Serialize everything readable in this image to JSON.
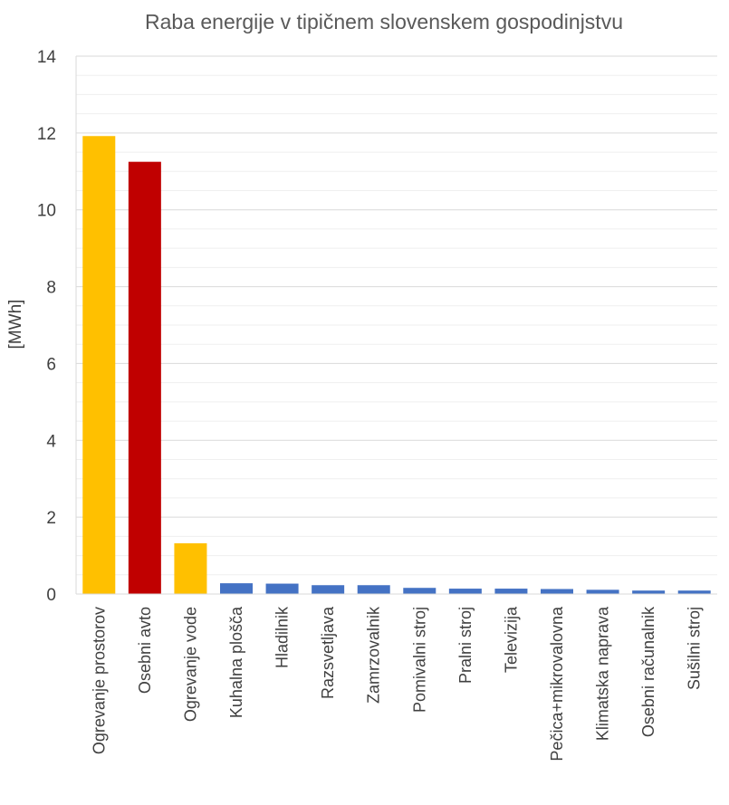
{
  "chart_data": {
    "type": "bar",
    "title": "Raba energije v tipičnem slovenskem gospodinjstvu",
    "xlabel": "",
    "ylabel": "[MWh]",
    "ylim": [
      0,
      14
    ],
    "yticks": [
      0,
      2,
      4,
      6,
      8,
      10,
      12,
      14
    ],
    "grid": true,
    "categories": [
      "Ogrevanje prostorov",
      "Osebni avto",
      "Ogrevanje vode",
      "Kuhalna plošča",
      "Hladilnik",
      "Razsvetljava",
      "Zamrzovalnik",
      "Pomivalni stroj",
      "Pralni stroj",
      "Televizija",
      "Pečica+mikrovalovna",
      "Klimatska naprava",
      "Osebni računalnik",
      "Sušilni stroj"
    ],
    "values": [
      11.92,
      11.25,
      1.32,
      0.28,
      0.27,
      0.23,
      0.23,
      0.16,
      0.14,
      0.14,
      0.13,
      0.11,
      0.09,
      0.09
    ],
    "colors": [
      "#FFC000",
      "#C00000",
      "#FFC000",
      "#4472C4",
      "#4472C4",
      "#4472C4",
      "#4472C4",
      "#4472C4",
      "#4472C4",
      "#4472C4",
      "#4472C4",
      "#4472C4",
      "#4472C4",
      "#4472C4"
    ]
  }
}
